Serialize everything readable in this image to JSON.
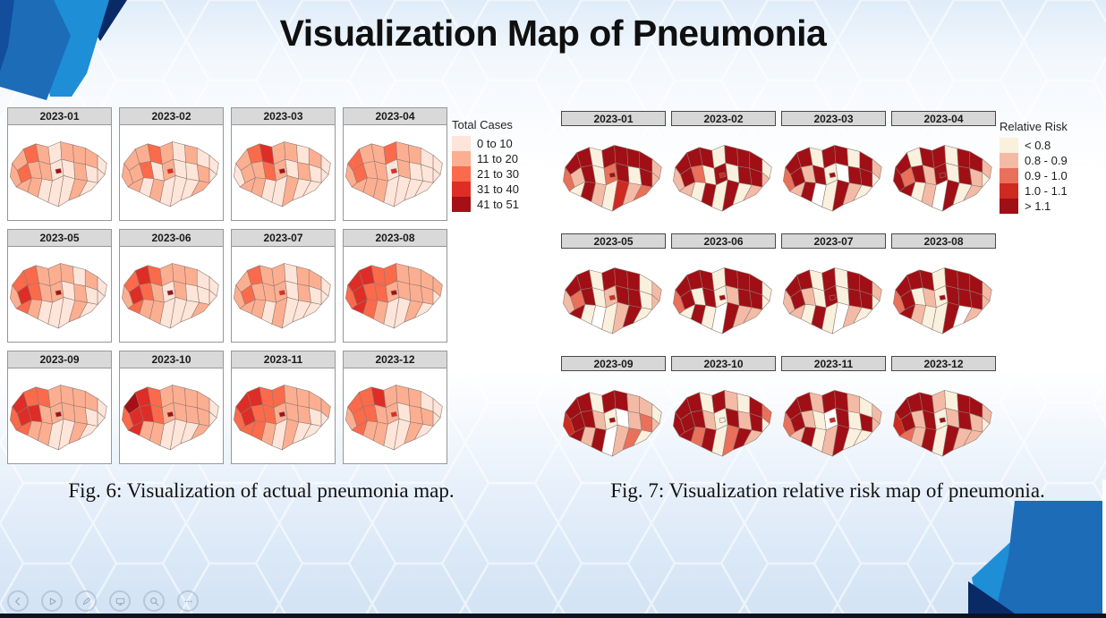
{
  "slide": {
    "title": "Visualization Map of Pneumonia"
  },
  "figures": [
    {
      "caption": "Fig. 6: Visualization of actual pneumonia map.",
      "legend_title": "Total Cases",
      "legend": [
        {
          "label": "0 to 10",
          "color": "#fee5d9"
        },
        {
          "label": "11 to 20",
          "color": "#fcae91"
        },
        {
          "label": "21 to 30",
          "color": "#fb6a4a"
        },
        {
          "label": "31 to 40",
          "color": "#de2d26"
        },
        {
          "label": "41 to 51",
          "color": "#a50f15"
        }
      ],
      "na_color": "#ffffff",
      "months": [
        "2023-01",
        "2023-02",
        "2023-03",
        "2023-04",
        "2023-05",
        "2023-06",
        "2023-07",
        "2023-08",
        "2023-09",
        "2023-10",
        "2023-11",
        "2023-12"
      ],
      "district_classes": [
        [
          1,
          1,
          2,
          1,
          0,
          1,
          1,
          1,
          0,
          2,
          1,
          1,
          0,
          0,
          1,
          0,
          0,
          1,
          1,
          0,
          0,
          0,
          1,
          0,
          4
        ],
        [
          1,
          1,
          1,
          2,
          1,
          0,
          1,
          0,
          0,
          1,
          2,
          0,
          1,
          0,
          0,
          1,
          0,
          1,
          0,
          1,
          0,
          0,
          0,
          1,
          3
        ],
        [
          0,
          1,
          2,
          3,
          1,
          1,
          0,
          1,
          0,
          1,
          1,
          2,
          1,
          0,
          1,
          0,
          0,
          1,
          1,
          0,
          0,
          1,
          0,
          0,
          4
        ],
        [
          1,
          2,
          1,
          1,
          2,
          1,
          1,
          0,
          0,
          2,
          1,
          1,
          0,
          1,
          0,
          0,
          0,
          1,
          1,
          1,
          0,
          0,
          0,
          0,
          3
        ],
        [
          1,
          2,
          2,
          1,
          1,
          1,
          0,
          1,
          0,
          3,
          2,
          1,
          1,
          0,
          1,
          0,
          0,
          2,
          1,
          0,
          0,
          0,
          1,
          0,
          4
        ],
        [
          1,
          2,
          3,
          2,
          1,
          1,
          1,
          0,
          0,
          3,
          2,
          1,
          0,
          1,
          0,
          0,
          0,
          2,
          1,
          1,
          0,
          0,
          0,
          1,
          4
        ],
        [
          1,
          1,
          2,
          1,
          1,
          0,
          1,
          1,
          0,
          2,
          1,
          1,
          1,
          0,
          1,
          0,
          0,
          1,
          1,
          0,
          1,
          0,
          0,
          0,
          3
        ],
        [
          2,
          3,
          3,
          2,
          2,
          1,
          1,
          1,
          1,
          3,
          2,
          2,
          1,
          1,
          1,
          1,
          0,
          3,
          2,
          1,
          0,
          0,
          1,
          0,
          4
        ],
        [
          2,
          3,
          2,
          2,
          1,
          1,
          1,
          1,
          0,
          3,
          3,
          1,
          1,
          1,
          1,
          0,
          0,
          2,
          1,
          1,
          0,
          0,
          1,
          0,
          4
        ],
        [
          2,
          4,
          3,
          2,
          1,
          1,
          1,
          1,
          0,
          3,
          3,
          2,
          1,
          1,
          1,
          1,
          0,
          3,
          1,
          1,
          0,
          0,
          0,
          1,
          4
        ],
        [
          2,
          3,
          3,
          2,
          2,
          1,
          1,
          1,
          1,
          3,
          2,
          2,
          1,
          1,
          1,
          0,
          0,
          2,
          2,
          1,
          0,
          1,
          0,
          0,
          4
        ],
        [
          1,
          2,
          2,
          3,
          1,
          1,
          1,
          0,
          0,
          2,
          2,
          1,
          1,
          0,
          1,
          1,
          0,
          2,
          1,
          1,
          0,
          0,
          1,
          0,
          3
        ]
      ]
    },
    {
      "caption": "Fig. 7: Visualization relative risk map of pneumonia.",
      "legend_title": "Relative Risk",
      "legend": [
        {
          "label": "< 0.8",
          "color": "#f9f0dd"
        },
        {
          "label": "0.8 - 0.9",
          "color": "#f3bba6"
        },
        {
          "label": "0.9 - 1.0",
          "color": "#e9705a"
        },
        {
          "label": "1.0 - 1.1",
          "color": "#ce2a20"
        },
        {
          "label": "> 1.1",
          "color": "#a00f15"
        }
      ],
      "na_color": "#ffffff",
      "months": [
        "2023-01",
        "2023-02",
        "2023-03",
        "2023-04",
        "2023-05",
        "2023-06",
        "2023-07",
        "2023-08",
        "2023-09",
        "2023-10",
        "2023-11",
        "2023-12"
      ],
      "district_classes": [
        [
          2,
          4,
          4,
          0,
          4,
          4,
          4,
          4,
          1,
          1,
          4,
          0,
          2,
          4,
          0,
          4,
          1,
          0,
          4,
          1,
          0,
          3,
          1,
          2,
          4
        ],
        [
          1,
          4,
          4,
          4,
          0,
          4,
          4,
          4,
          0,
          4,
          2,
          0,
          4,
          0,
          4,
          4,
          1,
          1,
          0,
          4,
          0,
          4,
          0,
          1,
          3
        ],
        [
          2,
          4,
          4,
          0,
          4,
          4,
          0,
          4,
          1,
          4,
          1,
          4,
          0,
          -1,
          4,
          4,
          0,
          1,
          4,
          -1,
          0,
          4,
          1,
          0,
          4
        ],
        [
          4,
          4,
          0,
          4,
          4,
          0,
          4,
          4,
          1,
          2,
          4,
          1,
          4,
          0,
          4,
          1,
          0,
          4,
          0,
          1,
          -1,
          4,
          0,
          1,
          4
        ],
        [
          1,
          4,
          4,
          0,
          4,
          4,
          4,
          0,
          1,
          2,
          4,
          0,
          1,
          4,
          4,
          0,
          1,
          4,
          0,
          -1,
          0,
          1,
          4,
          0,
          3
        ],
        [
          2,
          4,
          4,
          4,
          0,
          4,
          4,
          4,
          0,
          4,
          0,
          4,
          0,
          1,
          4,
          4,
          0,
          0,
          4,
          0,
          -1,
          4,
          1,
          1,
          4
        ],
        [
          1,
          4,
          4,
          0,
          4,
          0,
          4,
          4,
          1,
          4,
          1,
          0,
          4,
          0,
          4,
          4,
          0,
          1,
          0,
          4,
          0,
          -1,
          1,
          0,
          4
        ],
        [
          2,
          4,
          4,
          4,
          0,
          4,
          4,
          4,
          1,
          4,
          0,
          1,
          0,
          4,
          4,
          4,
          1,
          4,
          1,
          0,
          0,
          4,
          -1,
          1,
          4
        ],
        [
          3,
          4,
          4,
          0,
          4,
          4,
          1,
          1,
          0,
          4,
          4,
          1,
          0,
          -1,
          1,
          2,
          1,
          4,
          1,
          4,
          -1,
          1,
          2,
          0,
          4
        ],
        [
          4,
          4,
          4,
          0,
          4,
          1,
          0,
          4,
          2,
          4,
          4,
          1,
          0,
          4,
          1,
          4,
          0,
          4,
          2,
          4,
          0,
          2,
          4,
          1,
          0
        ],
        [
          2,
          4,
          4,
          1,
          4,
          4,
          1,
          0,
          1,
          4,
          1,
          0,
          -1,
          4,
          0,
          4,
          1,
          1,
          4,
          0,
          1,
          4,
          0,
          0,
          3
        ],
        [
          3,
          4,
          4,
          4,
          1,
          0,
          4,
          4,
          1,
          4,
          1,
          4,
          0,
          1,
          4,
          1,
          0,
          2,
          1,
          4,
          0,
          4,
          1,
          1,
          4
        ]
      ]
    }
  ],
  "map_style": {
    "district_border_color": "#8f7a73"
  },
  "toolbar": {
    "buttons": [
      {
        "name": "previous-slide",
        "icon": "chevron-left-icon"
      },
      {
        "name": "next-slide",
        "icon": "play-icon"
      },
      {
        "name": "pen-tool",
        "icon": "pen-icon"
      },
      {
        "name": "see-all-slides",
        "icon": "slides-icon"
      },
      {
        "name": "zoom-slide",
        "icon": "magnifier-icon"
      },
      {
        "name": "more-options",
        "icon": "ellipsis-icon"
      }
    ]
  },
  "decor": {
    "navy": "#0a2a66",
    "blue": "#1d6cb8",
    "dark_blue": "#124e9b",
    "cyan": "#1e8ed6",
    "edge_dark": "#0c1322"
  }
}
